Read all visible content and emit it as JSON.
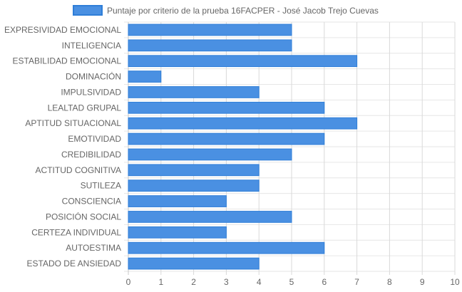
{
  "chart_data": {
    "type": "bar",
    "orientation": "horizontal",
    "categories": [
      "EXPRESIVIDAD EMOCIONAL",
      "INTELIGENCIA",
      "ESTABILIDAD EMOCIONAL",
      "DOMINACIÓN",
      "IMPULSIVIDAD",
      "LEALTAD GRUPAL",
      "APTITUD SITUACIONAL",
      "EMOTIVIDAD",
      "CREDIBILIDAD",
      "ACTITUD COGNITIVA",
      "SUTILEZA",
      "CONSCIENCIA",
      "POSICIÓN SOCIAL",
      "CERTEZA INDIVIDUAL",
      "AUTOESTIMA",
      "ESTADO DE ANSIEDAD"
    ],
    "series": [
      {
        "name": "Puntaje por criterio de la prueba 16FACPER - José Jacob Trejo Cuevas",
        "values": [
          5,
          5,
          7,
          1,
          4,
          6,
          7,
          6,
          5,
          4,
          4,
          3,
          5,
          3,
          6,
          4
        ],
        "color": "#4a90e2",
        "border_color": "#2f7ed8"
      }
    ],
    "xlim": [
      0,
      10
    ],
    "x_ticks": [
      "0",
      "1",
      "2",
      "3",
      "4",
      "5",
      "6",
      "7",
      "8",
      "9",
      "10"
    ],
    "grid": true,
    "legend_position": "top"
  }
}
